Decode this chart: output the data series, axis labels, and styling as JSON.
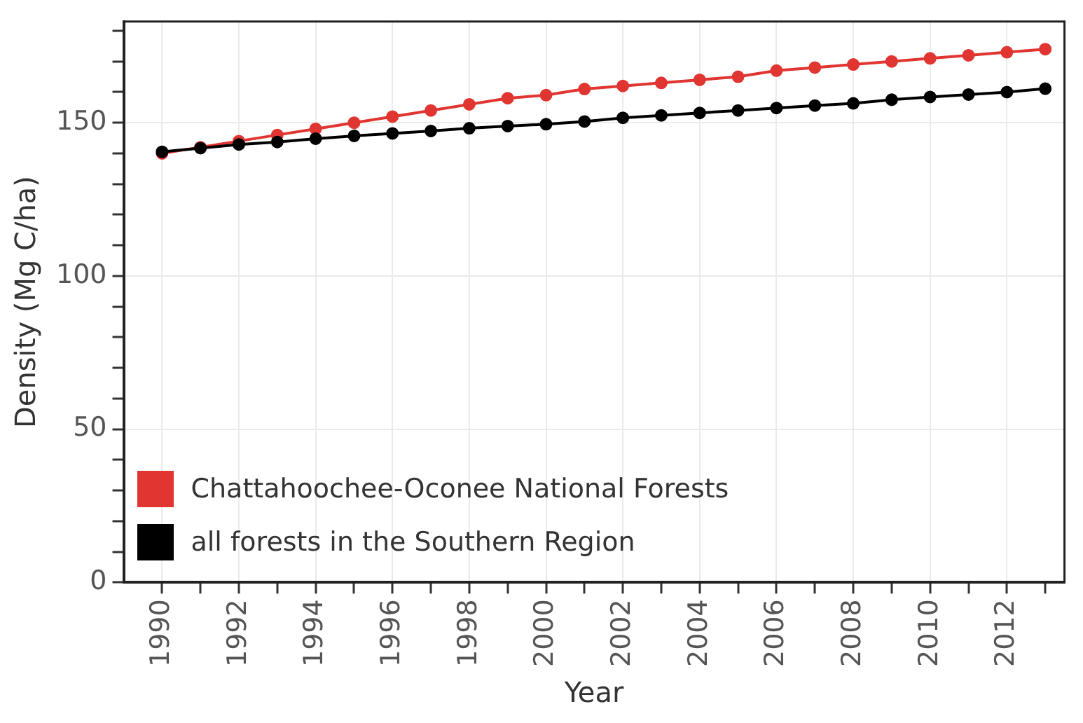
{
  "chart_data": {
    "type": "line",
    "xlabel": "Year",
    "ylabel": "Density (Mg C/ha)",
    "x": [
      1990,
      1991,
      1992,
      1993,
      1994,
      1995,
      1996,
      1997,
      1998,
      1999,
      2000,
      2001,
      2002,
      2003,
      2004,
      2005,
      2006,
      2007,
      2008,
      2009,
      2010,
      2011,
      2012,
      2013
    ],
    "series": [
      {
        "name": "Chattahoochee-Oconee National Forests",
        "color": "#e03531",
        "values": [
          140,
          142,
          144,
          146,
          148,
          150,
          152,
          154,
          156,
          158,
          159,
          161,
          162,
          163,
          164,
          165,
          167,
          168,
          169,
          170,
          171,
          172,
          173,
          174
        ]
      },
      {
        "name": "all forests in the Southern Region",
        "color": "#000000",
        "values": [
          140.5,
          141.7,
          142.9,
          143.7,
          144.8,
          145.7,
          146.5,
          147.3,
          148.2,
          148.9,
          149.5,
          150.4,
          151.6,
          152.4,
          153.2,
          154,
          154.8,
          155.6,
          156.3,
          157.5,
          158.4,
          159.2,
          160,
          161.1
        ]
      }
    ],
    "xlim": [
      1989,
      2013.5
    ],
    "xticks": [
      1990,
      {
        "value": 1991,
        "label": null
      },
      1992,
      {
        "value": 1993,
        "label": null
      },
      1994,
      {
        "value": 1995,
        "label": null
      },
      1996,
      {
        "value": 1997,
        "label": null
      },
      1998,
      {
        "value": 1999,
        "label": null
      },
      2000,
      {
        "value": 2001,
        "label": null
      },
      2002,
      {
        "value": 2003,
        "label": null
      },
      2004,
      {
        "value": 2005,
        "label": null
      },
      2006,
      {
        "value": 2007,
        "label": null
      },
      2008,
      {
        "value": 2009,
        "label": null
      },
      2010,
      {
        "value": 2011,
        "label": null
      },
      2012,
      {
        "value": 2013,
        "label": null
      }
    ],
    "ylim": [
      0,
      183
    ],
    "yticks": [
      0,
      {
        "value": 10,
        "label": null
      },
      {
        "value": 20,
        "label": null
      },
      {
        "value": 30,
        "label": null
      },
      {
        "value": 40,
        "label": null
      },
      50,
      {
        "value": 60,
        "label": null
      },
      {
        "value": 70,
        "label": null
      },
      {
        "value": 80,
        "label": null
      },
      {
        "value": 90,
        "label": null
      },
      100,
      {
        "value": 110,
        "label": null
      },
      {
        "value": 120,
        "label": null
      },
      {
        "value": 130,
        "label": null
      },
      {
        "value": 140,
        "label": null
      },
      150,
      {
        "value": 160,
        "label": null
      },
      {
        "value": 170,
        "label": null
      },
      {
        "value": 180,
        "label": null
      }
    ],
    "grid": true,
    "legend": "bottom left",
    "marker": "circle",
    "line_style": "solid"
  }
}
